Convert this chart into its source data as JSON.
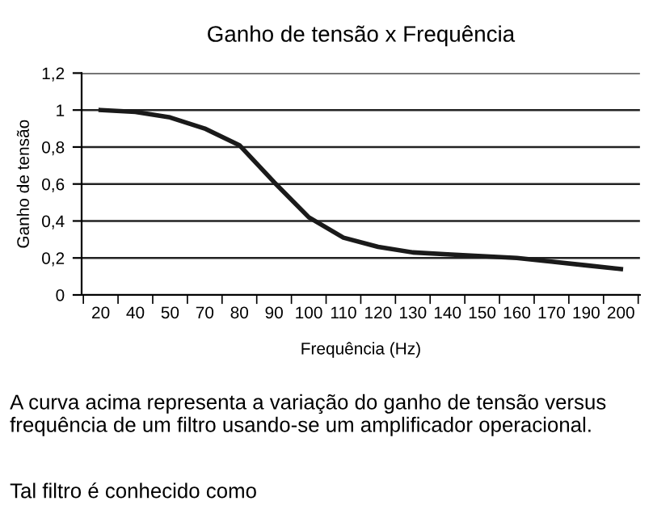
{
  "chart_data": {
    "type": "line",
    "title": "Ganho de tensão x Frequência",
    "xlabel": "Frequência (Hz)",
    "ylabel": "Ganho de tensão",
    "categories": [
      "20",
      "40",
      "50",
      "70",
      "80",
      "90",
      "100",
      "110",
      "120",
      "130",
      "140",
      "150",
      "160",
      "170",
      "190",
      "200"
    ],
    "series": [
      {
        "color": "#1a1a1a",
        "values": [
          1.0,
          0.99,
          0.96,
          0.9,
          0.81,
          0.61,
          0.42,
          0.31,
          0.26,
          0.23,
          0.22,
          0.21,
          0.2,
          0.18,
          0.16,
          0.14
        ]
      }
    ],
    "ylim": [
      0,
      1.2
    ],
    "yticks": [
      {
        "value": 0,
        "label": "0"
      },
      {
        "value": 0.2,
        "label": "0,2"
      },
      {
        "value": 0.4,
        "label": "0,4"
      },
      {
        "value": 0.6,
        "label": "0,6"
      },
      {
        "value": 0.8,
        "label": "0,8"
      },
      {
        "value": 1,
        "label": "1"
      },
      {
        "value": 1.2,
        "label": "1,2"
      }
    ],
    "grid": "y",
    "marker": "none",
    "line_style": "solid",
    "annotations": [
      "A curva acima representa a variação do ganho de tensão versus frequência de um filtro usando-se um amplificador operacional.",
      "Tal filtro é conhecido como"
    ]
  }
}
